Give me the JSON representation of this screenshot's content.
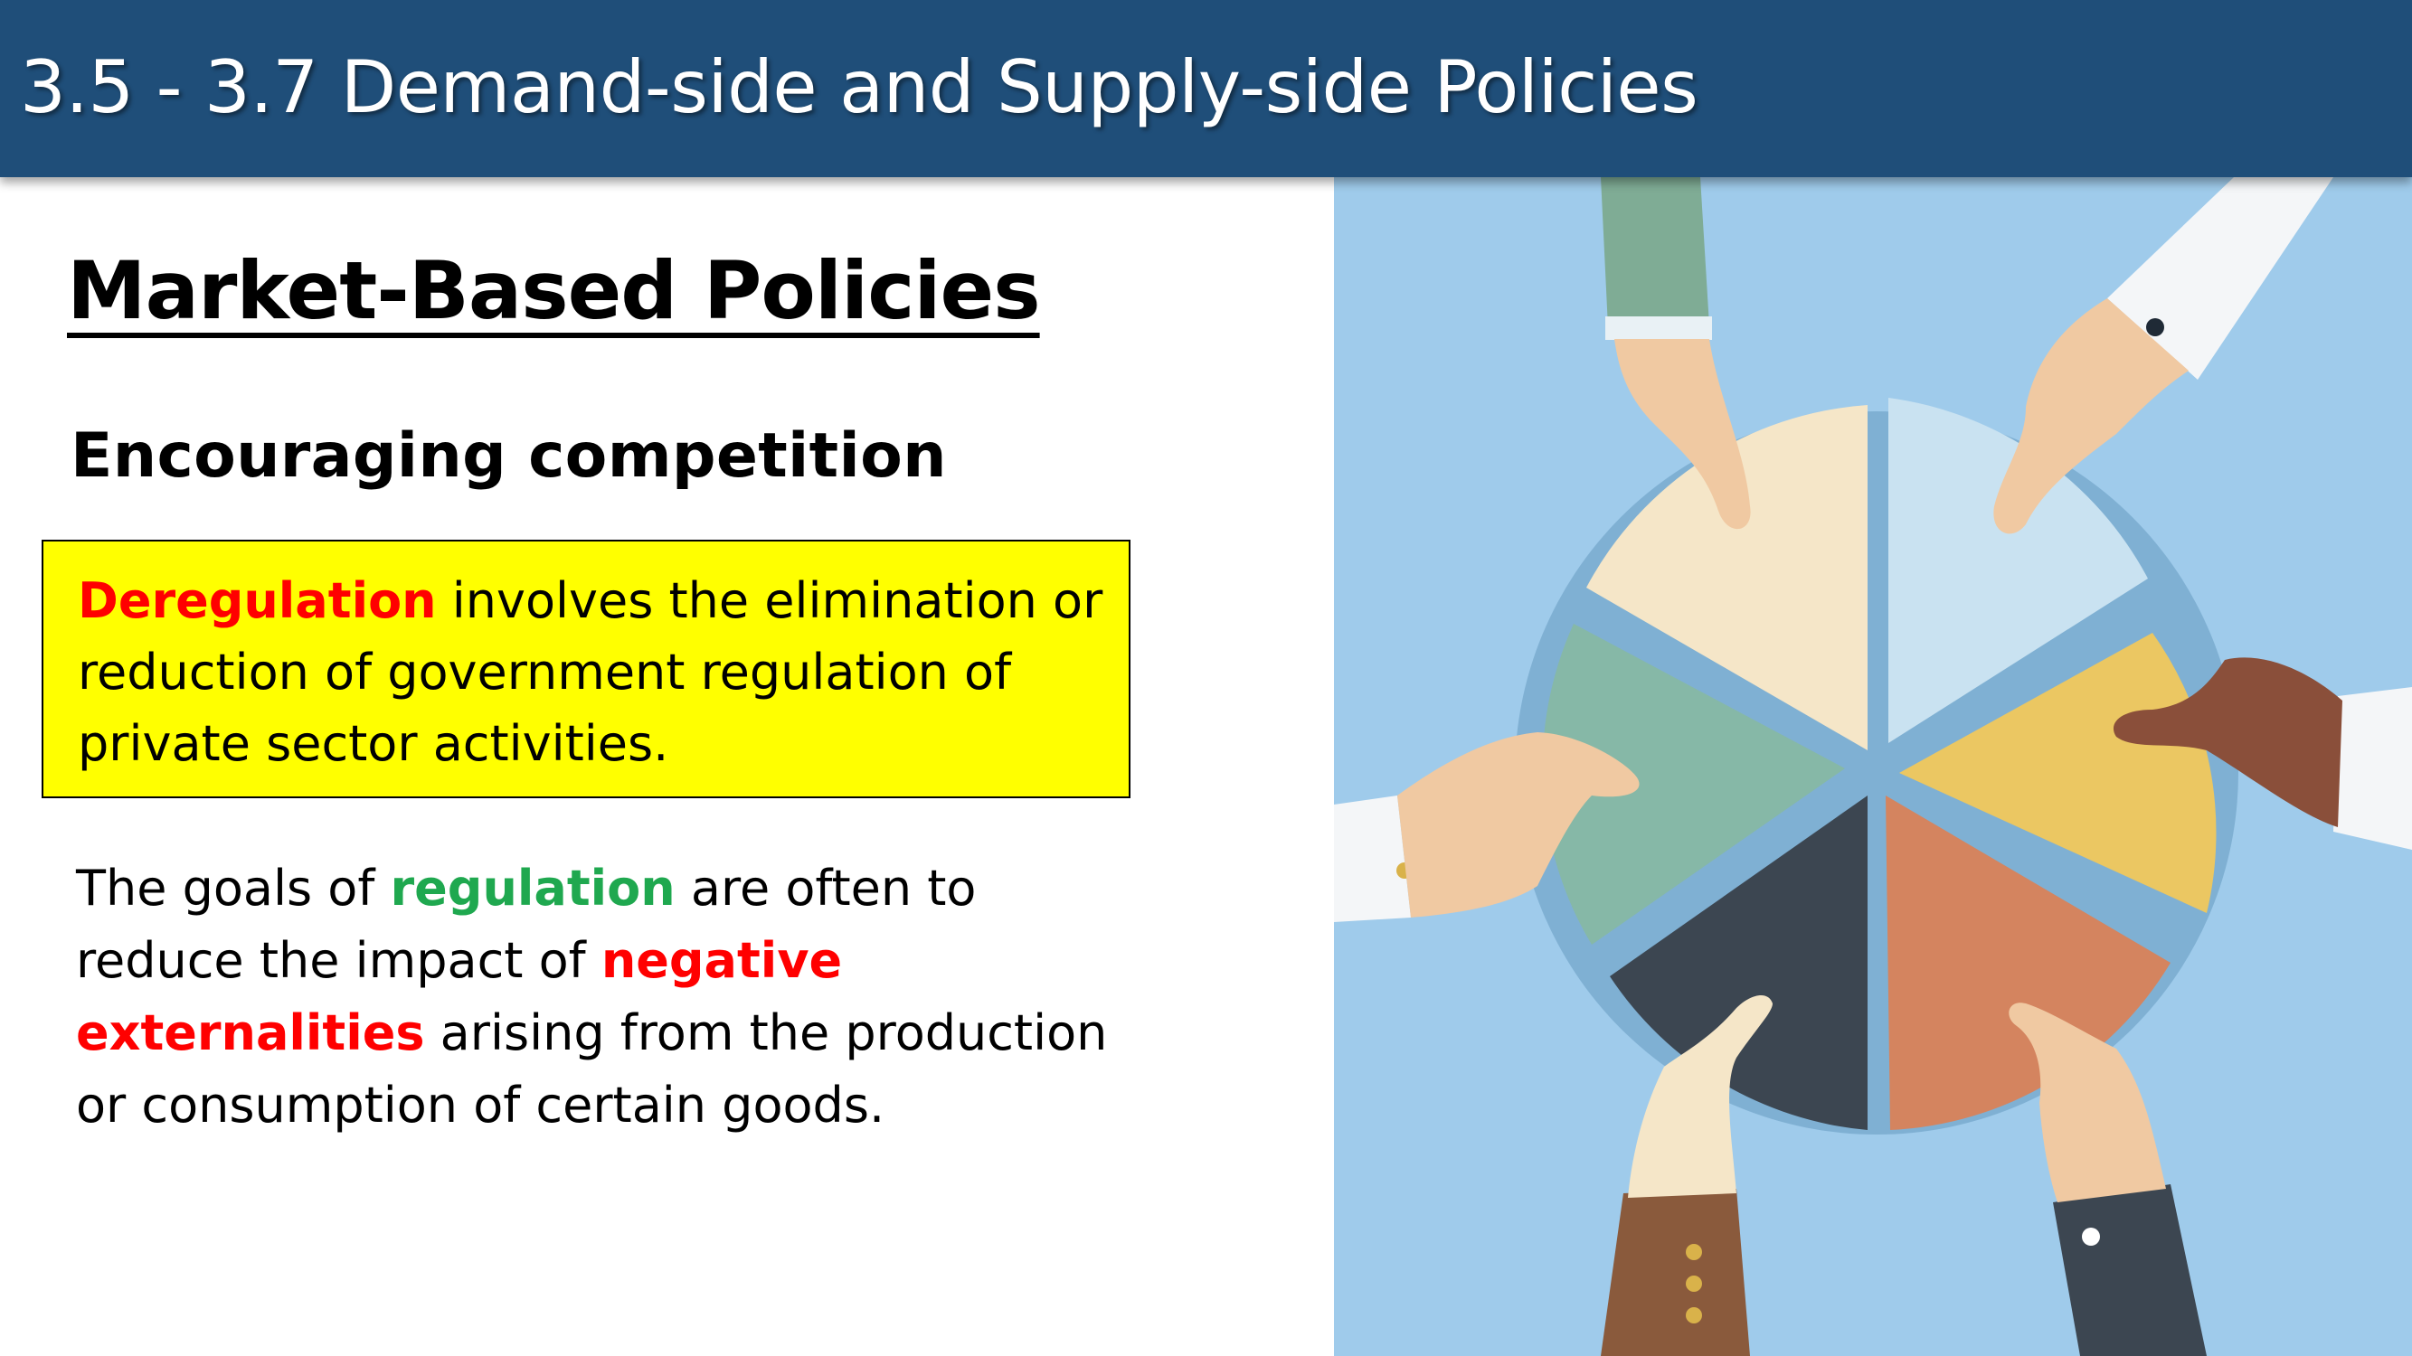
{
  "header": {
    "title": "3.5 - 3.7 Demand-side and Supply-side Policies"
  },
  "content": {
    "section_heading": "Market-Based Policies",
    "subheading": "Encouraging competition",
    "definition": {
      "keyword": "Deregulation",
      "text": " involves the elimination or reduction of government regulation of private sector activities."
    },
    "goals": {
      "part1": "The goals of ",
      "keyword_regulation": "regulation",
      "part2": " are often to reduce the impact of ",
      "keyword_negative": "negative externalities",
      "part3": " arising from the production or consumption of certain goods."
    }
  },
  "illustration": {
    "description_icon": "hands-holding-pie-chart-pieces",
    "colors": {
      "background": "#9fcbeb",
      "slice_cream": "#f5e6c8",
      "slice_lightblue": "#c9e2f1",
      "slice_yellow": "#ebc762",
      "slice_orange": "#d4845f",
      "slice_dark": "#3c4651",
      "slice_green": "#86b8a7"
    }
  },
  "colors": {
    "header_bg": "#1f4e79",
    "highlight_box": "#ffff00",
    "keyword_red": "#ff0000",
    "keyword_green": "#1fa84f"
  }
}
